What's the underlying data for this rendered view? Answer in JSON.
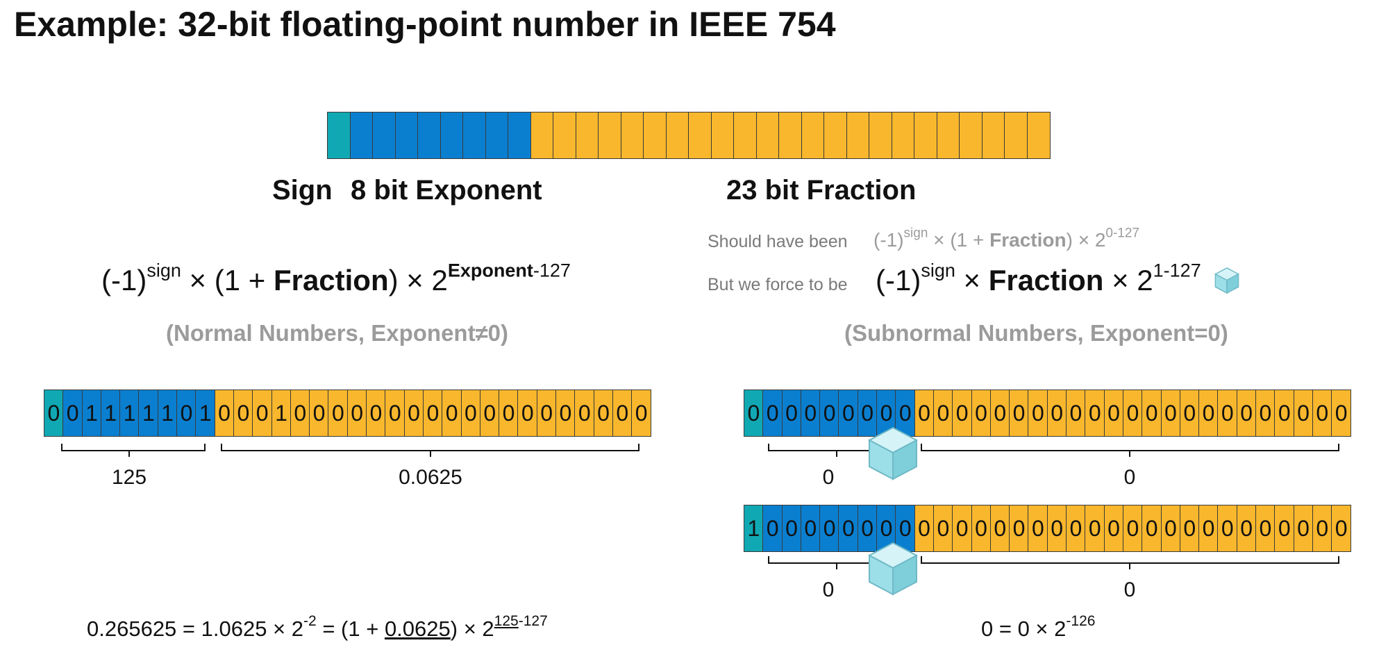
{
  "title": "Example: 32-bit floating-point number in IEEE 754",
  "colors": {
    "sign": "#10a8b3",
    "exponent": "#0a7fd0",
    "fraction": "#f8b72c"
  },
  "layout_bar": {
    "sign_bits": 1,
    "exponent_bits": 8,
    "fraction_bits": 23
  },
  "labels": {
    "sign": "Sign",
    "exponent": "8 bit Exponent",
    "fraction": "23 bit Fraction"
  },
  "normal": {
    "formula": {
      "p1": "(-1)",
      "sign_sup": "sign",
      "p2": " × (1 + ",
      "frac": "Fraction",
      "p3": ") × 2",
      "exp_bold": "Exponent",
      "exp_rest": "-127"
    },
    "caption": "(Normal Numbers, Exponent≠0)",
    "bits": [
      "0",
      "0",
      "1",
      "1",
      "1",
      "1",
      "1",
      "0",
      "1",
      "0",
      "0",
      "0",
      "1",
      "0",
      "0",
      "0",
      "0",
      "0",
      "0",
      "0",
      "0",
      "0",
      "0",
      "0",
      "0",
      "0",
      "0",
      "0",
      "0",
      "0",
      "0",
      "0"
    ],
    "exponent_value": "125",
    "fraction_value": "0.0625",
    "equation": {
      "a": "0.265625 = 1.0625 × 2",
      "a_sup": "-2",
      "b": " = (1 + ",
      "b_ul": "0.0625",
      "c": ") × 2",
      "c_sup_ul": "125",
      "c_sup_rest": "-127"
    }
  },
  "subnormal": {
    "should_label": "Should have been",
    "should_formula": {
      "p1": "(-1)",
      "sign_sup": "sign",
      "p2": " × (1 + ",
      "frac": "Fraction",
      "p3": ") × 2",
      "exp": "0-127"
    },
    "force_label": "But we force to be",
    "force_formula": {
      "p1": "(-1)",
      "sign_sup": "sign",
      "p2": " × ",
      "frac": "Fraction",
      "p3": " × 2",
      "exp": "1-127"
    },
    "caption": "(Subnormal Numbers, Exponent=0)",
    "rows": [
      {
        "bits": [
          "0",
          "0",
          "0",
          "0",
          "0",
          "0",
          "0",
          "0",
          "0",
          "0",
          "0",
          "0",
          "0",
          "0",
          "0",
          "0",
          "0",
          "0",
          "0",
          "0",
          "0",
          "0",
          "0",
          "0",
          "0",
          "0",
          "0",
          "0",
          "0",
          "0",
          "0",
          "0"
        ],
        "exponent_value": "0",
        "fraction_value": "0"
      },
      {
        "bits": [
          "1",
          "0",
          "0",
          "0",
          "0",
          "0",
          "0",
          "0",
          "0",
          "0",
          "0",
          "0",
          "0",
          "0",
          "0",
          "0",
          "0",
          "0",
          "0",
          "0",
          "0",
          "0",
          "0",
          "0",
          "0",
          "0",
          "0",
          "0",
          "0",
          "0",
          "0",
          "0"
        ],
        "exponent_value": "0",
        "fraction_value": "0"
      }
    ],
    "equation": {
      "a": "0 = 0 × 2",
      "a_sup": "-126"
    }
  }
}
